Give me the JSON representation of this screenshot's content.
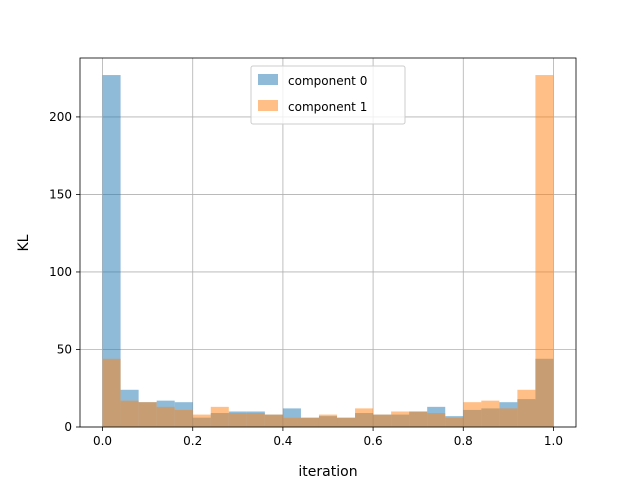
{
  "chart_data": {
    "type": "bar",
    "title": "",
    "xlabel": "iteration",
    "ylabel": "KL",
    "xlim": [
      -0.05,
      1.05
    ],
    "ylim": [
      0,
      238
    ],
    "grid": true,
    "legend_position": "top-center",
    "xticks": [
      0.0,
      0.2,
      0.4,
      0.6,
      0.8,
      1.0
    ],
    "xtick_labels": [
      "0.0",
      "0.2",
      "0.4",
      "0.6",
      "0.8",
      "1.0"
    ],
    "yticks": [
      0,
      50,
      100,
      150,
      200
    ],
    "ytick_labels": [
      "0",
      "50",
      "100",
      "150",
      "200"
    ],
    "bin_width": 0.04,
    "bin_starts": [
      0.0,
      0.04,
      0.08,
      0.12,
      0.16,
      0.2,
      0.24,
      0.28,
      0.32,
      0.36,
      0.4,
      0.44,
      0.48,
      0.52,
      0.56,
      0.6,
      0.64,
      0.68,
      0.72,
      0.76,
      0.8,
      0.84,
      0.88,
      0.92,
      0.96
    ],
    "series": [
      {
        "name": "component 0",
        "color": "#1f77b4",
        "values": [
          227,
          24,
          16,
          17,
          16,
          6,
          9,
          10,
          10,
          8,
          12,
          6,
          7,
          6,
          9,
          8,
          8,
          10,
          13,
          7,
          11,
          12,
          16,
          18,
          44
        ]
      },
      {
        "name": "component 1",
        "color": "#ff7f0e",
        "values": [
          44,
          17,
          16,
          13,
          11,
          8,
          13,
          9,
          9,
          8,
          6,
          6,
          8,
          6,
          12,
          8,
          10,
          10,
          9,
          6,
          16,
          17,
          12,
          24,
          227
        ]
      }
    ]
  }
}
